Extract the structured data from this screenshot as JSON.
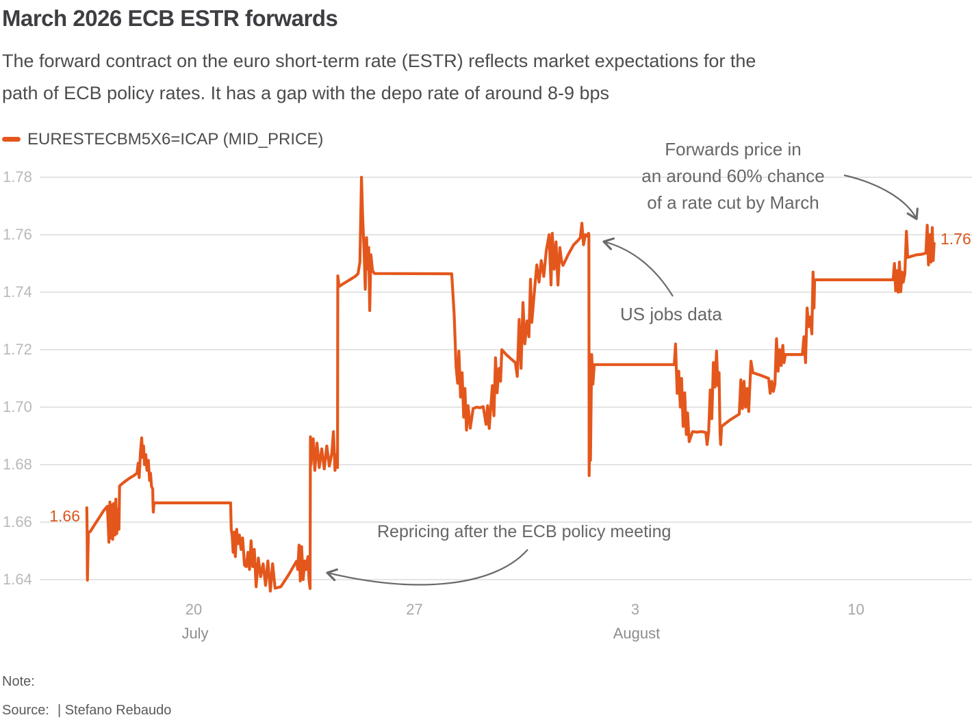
{
  "title": "March 2026 ECB ESTR forwards",
  "subtitle_lines": [
    "The forward contract on the euro short-term rate (ESTR) reflects market expectations for the",
    "path of ECB policy rates. It has a gap with the depo rate of around 8-9 bps"
  ],
  "legend": {
    "label": "EURESTECBM5X6=ICAP (MID_PRICE)"
  },
  "colors": {
    "accent": "#e4571c",
    "grid": "#d4d4d4",
    "annotation_arrow": "#6a6a6a",
    "data_label": "#d8571c"
  },
  "annotations": {
    "forwards": {
      "lines": [
        "Forwards price in",
        "an around 60% chance",
        "of a rate cut by March"
      ]
    },
    "us_jobs": {
      "text": "US jobs data"
    },
    "repricing": {
      "text": "Repricing after the ECB policy meeting"
    }
  },
  "data_labels": {
    "start": "1.66",
    "end": "1.76"
  },
  "footer": {
    "note_label": "Note:",
    "source_label": "Source:",
    "source_text": "| Stefano Rebaudo"
  },
  "chart_data": {
    "type": "line",
    "title": "March 2026 ECB ESTR forwards",
    "grid": true,
    "legend_position": "top-left",
    "x_axis": {
      "unit": "date",
      "day_zero": "Jul 16",
      "range_days": [
        0.5,
        27.7
      ],
      "ticks": [
        {
          "label": "20",
          "day": 4
        },
        {
          "label": "27",
          "day": 11
        },
        {
          "label": "3",
          "day": 18
        },
        {
          "label": "10",
          "day": 25
        }
      ],
      "month_labels": [
        {
          "label": "July",
          "day": 4
        },
        {
          "label": "August",
          "day": 18
        }
      ]
    },
    "y_axis": {
      "ticks": [
        1.64,
        1.66,
        1.68,
        1.7,
        1.72,
        1.74,
        1.76,
        1.78
      ],
      "range": [
        1.628,
        1.785
      ]
    },
    "series": [
      {
        "name": "EURESTECBM5X6=ICAP (MID_PRICE)",
        "color": "#e4571c",
        "points": [
          [
            0.61,
            1.665
          ],
          [
            0.62,
            1.6565
          ],
          [
            0.63,
            1.6398
          ],
          [
            0.66,
            1.6565
          ],
          [
            0.72,
            1.6567
          ],
          [
            0.85,
            1.659
          ],
          [
            1.0,
            1.6615
          ],
          [
            1.13,
            1.6638
          ],
          [
            1.26,
            1.6655
          ],
          [
            1.29,
            1.6585
          ],
          [
            1.31,
            1.653
          ],
          [
            1.34,
            1.667
          ],
          [
            1.37,
            1.6545
          ],
          [
            1.4,
            1.666
          ],
          [
            1.43,
            1.654
          ],
          [
            1.46,
            1.6665
          ],
          [
            1.5,
            1.6555
          ],
          [
            1.53,
            1.668
          ],
          [
            1.56,
            1.656
          ],
          [
            1.6,
            1.6645
          ],
          [
            1.63,
            1.6575
          ],
          [
            1.65,
            1.6726
          ],
          [
            1.78,
            1.6738
          ],
          [
            1.95,
            1.6752
          ],
          [
            2.1,
            1.6762
          ],
          [
            2.2,
            1.677
          ],
          [
            2.24,
            1.6805
          ],
          [
            2.27,
            1.6755
          ],
          [
            2.31,
            1.684
          ],
          [
            2.35,
            1.6893
          ],
          [
            2.38,
            1.6825
          ],
          [
            2.41,
            1.6865
          ],
          [
            2.44,
            1.68
          ],
          [
            2.48,
            1.6835
          ],
          [
            2.52,
            1.678
          ],
          [
            2.56,
            1.6815
          ],
          [
            2.6,
            1.6745
          ],
          [
            2.63,
            1.677
          ],
          [
            2.66,
            1.6725
          ],
          [
            2.7,
            1.6715
          ],
          [
            2.71,
            1.6655
          ],
          [
            2.72,
            1.6635
          ],
          [
            2.74,
            1.6667
          ],
          [
            5.17,
            1.6667
          ],
          [
            5.19,
            1.6575
          ],
          [
            5.22,
            1.6553
          ],
          [
            5.25,
            1.6495
          ],
          [
            5.28,
            1.6565
          ],
          [
            5.32,
            1.648
          ],
          [
            5.36,
            1.6575
          ],
          [
            5.4,
            1.6525
          ],
          [
            5.45,
            1.6555
          ],
          [
            5.5,
            1.6505
          ],
          [
            5.55,
            1.6545
          ],
          [
            5.61,
            1.645
          ],
          [
            5.67,
            1.6445
          ],
          [
            5.72,
            1.6495
          ],
          [
            5.77,
            1.6435
          ],
          [
            5.82,
            1.6535
          ],
          [
            5.87,
            1.6445
          ],
          [
            5.92,
            1.6505
          ],
          [
            5.98,
            1.6375
          ],
          [
            6.05,
            1.6475
          ],
          [
            6.12,
            1.641
          ],
          [
            6.2,
            1.6455
          ],
          [
            6.28,
            1.638
          ],
          [
            6.35,
            1.6465
          ],
          [
            6.43,
            1.636
          ],
          [
            6.5,
            1.6455
          ],
          [
            6.58,
            1.637
          ],
          [
            6.76,
            1.6375
          ],
          [
            7.0,
            1.6415
          ],
          [
            7.26,
            1.6464
          ],
          [
            7.3,
            1.6435
          ],
          [
            7.34,
            1.652
          ],
          [
            7.38,
            1.6395
          ],
          [
            7.42,
            1.6515
          ],
          [
            7.47,
            1.64
          ],
          [
            7.52,
            1.6465
          ],
          [
            7.56,
            1.6435
          ],
          [
            7.62,
            1.648
          ],
          [
            7.66,
            1.6395
          ],
          [
            7.69,
            1.6369
          ],
          [
            7.7,
            1.6897
          ],
          [
            7.72,
            1.68
          ],
          [
            7.74,
            1.6835
          ],
          [
            7.79,
            1.689
          ],
          [
            7.84,
            1.678
          ],
          [
            7.91,
            1.6875
          ],
          [
            7.98,
            1.679
          ],
          [
            8.06,
            1.6855
          ],
          [
            8.14,
            1.6785
          ],
          [
            8.22,
            1.6865
          ],
          [
            8.3,
            1.6795
          ],
          [
            8.38,
            1.684
          ],
          [
            8.43,
            1.6915
          ],
          [
            8.48,
            1.678
          ],
          [
            8.52,
            1.6835
          ],
          [
            8.56,
            1.679
          ],
          [
            8.57,
            1.7457
          ],
          [
            8.61,
            1.742
          ],
          [
            8.72,
            1.7428
          ],
          [
            8.87,
            1.7438
          ],
          [
            9.02,
            1.7448
          ],
          [
            9.12,
            1.7455
          ],
          [
            9.21,
            1.7464
          ],
          [
            9.27,
            1.7505
          ],
          [
            9.32,
            1.78
          ],
          [
            9.36,
            1.7655
          ],
          [
            9.4,
            1.755
          ],
          [
            9.44,
            1.741
          ],
          [
            9.48,
            1.759
          ],
          [
            9.52,
            1.748
          ],
          [
            9.55,
            1.7555
          ],
          [
            9.58,
            1.7336
          ],
          [
            9.62,
            1.753
          ],
          [
            9.67,
            1.7475
          ],
          [
            9.73,
            1.7465
          ],
          [
            12.18,
            1.7464
          ],
          [
            12.26,
            1.7322
          ],
          [
            12.32,
            1.714
          ],
          [
            12.37,
            1.7083
          ],
          [
            12.41,
            1.7195
          ],
          [
            12.46,
            1.7035
          ],
          [
            12.51,
            1.712
          ],
          [
            12.56,
            1.6965
          ],
          [
            12.6,
            1.7065
          ],
          [
            12.65,
            1.692
          ],
          [
            12.7,
            1.7005
          ],
          [
            12.77,
            1.6927
          ],
          [
            12.86,
            1.6995
          ],
          [
            12.97,
            1.7
          ],
          [
            13.08,
            1.6998
          ],
          [
            13.18,
            1.7002
          ],
          [
            13.27,
            1.694
          ],
          [
            13.32,
            1.7005
          ],
          [
            13.37,
            1.6926
          ],
          [
            13.42,
            1.7
          ],
          [
            13.47,
            1.7075
          ],
          [
            13.52,
            1.697
          ],
          [
            13.57,
            1.7172
          ],
          [
            13.62,
            1.705
          ],
          [
            13.68,
            1.7135
          ],
          [
            13.73,
            1.709
          ],
          [
            13.77,
            1.72
          ],
          [
            13.92,
            1.7182
          ],
          [
            14.06,
            1.7168
          ],
          [
            14.2,
            1.7155
          ],
          [
            14.26,
            1.7107
          ],
          [
            14.32,
            1.7305
          ],
          [
            14.38,
            1.7135
          ],
          [
            14.44,
            1.7364
          ],
          [
            14.5,
            1.722
          ],
          [
            14.57,
            1.73
          ],
          [
            14.63,
            1.7245
          ],
          [
            14.68,
            1.7445
          ],
          [
            14.72,
            1.7295
          ],
          [
            14.8,
            1.74
          ],
          [
            14.88,
            1.7495
          ],
          [
            14.95,
            1.7435
          ],
          [
            15.02,
            1.751
          ],
          [
            15.1,
            1.7455
          ],
          [
            15.18,
            1.7545
          ],
          [
            15.27,
            1.76
          ],
          [
            15.33,
            1.7425
          ],
          [
            15.37,
            1.7605
          ],
          [
            15.43,
            1.748
          ],
          [
            15.49,
            1.7575
          ],
          [
            15.55,
            1.7425
          ],
          [
            15.61,
            1.7555
          ],
          [
            15.66,
            1.751
          ],
          [
            15.71,
            1.7493
          ],
          [
            15.88,
            1.7532
          ],
          [
            16.05,
            1.7565
          ],
          [
            16.2,
            1.7582
          ],
          [
            16.26,
            1.759
          ],
          [
            16.31,
            1.764
          ],
          [
            16.36,
            1.7565
          ],
          [
            16.42,
            1.76
          ],
          [
            16.47,
            1.7595
          ],
          [
            16.52,
            1.7605
          ],
          [
            16.53,
            1.76
          ],
          [
            16.54,
            1.6762
          ],
          [
            16.56,
            1.695
          ],
          [
            16.58,
            1.6815
          ],
          [
            16.62,
            1.7183
          ],
          [
            16.66,
            1.708
          ],
          [
            16.7,
            1.7148
          ],
          [
            19.24,
            1.7148
          ],
          [
            19.28,
            1.722
          ],
          [
            19.33,
            1.7048
          ],
          [
            19.38,
            1.7125
          ],
          [
            19.43,
            1.7
          ],
          [
            19.47,
            1.71
          ],
          [
            19.52,
            1.6933
          ],
          [
            19.57,
            1.705
          ],
          [
            19.62,
            1.6905
          ],
          [
            19.66,
            1.698
          ],
          [
            19.71,
            1.688
          ],
          [
            19.82,
            1.6915
          ],
          [
            19.96,
            1.6913
          ],
          [
            20.1,
            1.6915
          ],
          [
            20.24,
            1.6912
          ],
          [
            20.28,
            1.687
          ],
          [
            20.33,
            1.6915
          ],
          [
            20.38,
            1.706
          ],
          [
            20.43,
            1.696
          ],
          [
            20.48,
            1.7155
          ],
          [
            20.53,
            1.707
          ],
          [
            20.58,
            1.7195
          ],
          [
            20.62,
            1.7075
          ],
          [
            20.66,
            1.712
          ],
          [
            20.69,
            1.691
          ],
          [
            20.71,
            1.687
          ],
          [
            20.74,
            1.6933
          ],
          [
            21.0,
            1.6955
          ],
          [
            21.3,
            1.6976
          ],
          [
            21.35,
            1.7095
          ],
          [
            21.4,
            1.6995
          ],
          [
            21.45,
            1.709
          ],
          [
            21.5,
            1.7
          ],
          [
            21.55,
            1.7065
          ],
          [
            21.6,
            1.6985
          ],
          [
            21.67,
            1.716
          ],
          [
            21.73,
            1.712
          ],
          [
            22.0,
            1.711
          ],
          [
            22.23,
            1.71
          ],
          [
            22.28,
            1.7048
          ],
          [
            22.33,
            1.709
          ],
          [
            22.38,
            1.7055
          ],
          [
            22.43,
            1.708
          ],
          [
            22.48,
            1.7238
          ],
          [
            22.53,
            1.7125
          ],
          [
            22.58,
            1.72
          ],
          [
            22.63,
            1.7145
          ],
          [
            22.68,
            1.7215
          ],
          [
            22.72,
            1.7155
          ],
          [
            22.76,
            1.7183
          ],
          [
            23.3,
            1.7183
          ],
          [
            23.35,
            1.7245
          ],
          [
            23.4,
            1.7155
          ],
          [
            23.45,
            1.7345
          ],
          [
            23.5,
            1.728
          ],
          [
            23.55,
            1.7314
          ],
          [
            23.6,
            1.7255
          ],
          [
            23.64,
            1.747
          ],
          [
            23.67,
            1.7345
          ],
          [
            23.69,
            1.7443
          ],
          [
            26.18,
            1.7443
          ],
          [
            26.22,
            1.75
          ],
          [
            26.26,
            1.7405
          ],
          [
            26.3,
            1.7475
          ],
          [
            26.34,
            1.74
          ],
          [
            26.38,
            1.7505
          ],
          [
            26.42,
            1.7402
          ],
          [
            26.46,
            1.747
          ],
          [
            26.5,
            1.7435
          ],
          [
            26.55,
            1.7465
          ],
          [
            26.6,
            1.7612
          ],
          [
            26.64,
            1.7521
          ],
          [
            26.76,
            1.7525
          ],
          [
            26.92,
            1.753
          ],
          [
            27.08,
            1.7532
          ],
          [
            27.22,
            1.7536
          ],
          [
            27.26,
            1.7633
          ],
          [
            27.3,
            1.7495
          ],
          [
            27.34,
            1.76
          ],
          [
            27.38,
            1.7505
          ],
          [
            27.42,
            1.7625
          ],
          [
            27.45,
            1.751
          ],
          [
            27.48,
            1.757
          ]
        ]
      }
    ]
  }
}
